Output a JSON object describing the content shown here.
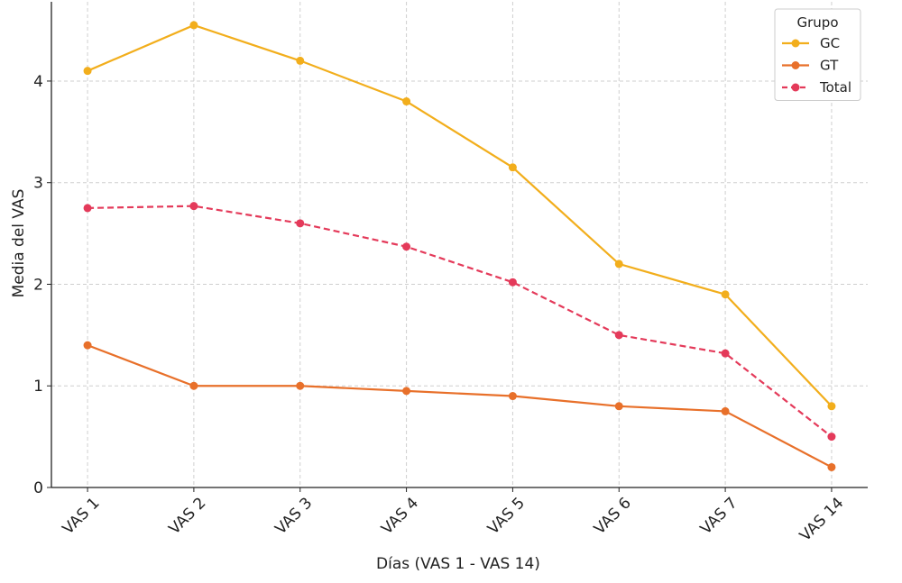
{
  "chart_data": {
    "type": "line",
    "x_label": "Días (VAS 1 - VAS 14)",
    "y_label": "Media del VAS",
    "categories": [
      "VAS 1",
      "VAS 2",
      "VAS 3",
      "VAS 4",
      "VAS 5",
      "VAS 6",
      "VAS 7",
      "VAS 14"
    ],
    "series": [
      {
        "name": "GC",
        "color": "#f2ae1c",
        "dashed": false,
        "values": [
          4.1,
          4.55,
          4.2,
          3.8,
          3.15,
          2.2,
          1.9,
          0.8
        ]
      },
      {
        "name": "GT",
        "color": "#e8702a",
        "dashed": false,
        "values": [
          1.4,
          1.0,
          1.0,
          0.95,
          0.9,
          0.8,
          0.75,
          0.2
        ]
      },
      {
        "name": "Total",
        "color": "#e43a5a",
        "dashed": true,
        "values": [
          2.75,
          2.77,
          2.6,
          2.37,
          2.02,
          1.5,
          1.32,
          0.5
        ]
      }
    ],
    "legend_title": "Grupo",
    "legend_position": "upper right",
    "ylim": [
      0,
      4.78
    ],
    "yticks": [
      0,
      1,
      2,
      3,
      4
    ],
    "grid": true
  }
}
